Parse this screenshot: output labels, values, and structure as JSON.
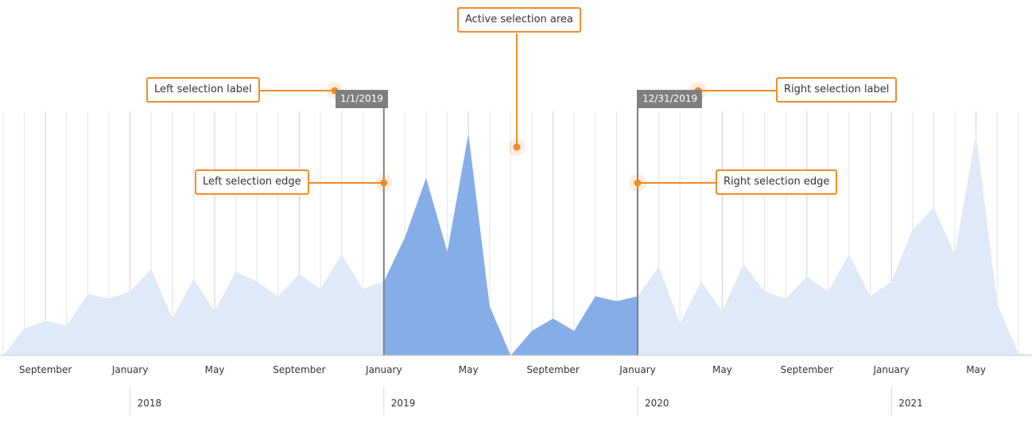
{
  "chart_data": {
    "type": "area",
    "x": [
      "2017-07",
      "2017-08",
      "2017-09",
      "2017-10",
      "2017-11",
      "2017-12",
      "2018-01",
      "2018-02",
      "2018-03",
      "2018-04",
      "2018-05",
      "2018-06",
      "2018-07",
      "2018-08",
      "2018-09",
      "2018-10",
      "2018-11",
      "2018-12",
      "2019-01",
      "2019-02",
      "2019-03",
      "2019-04",
      "2019-05",
      "2019-06",
      "2019-07",
      "2019-08",
      "2019-09",
      "2019-10",
      "2019-11",
      "2019-12",
      "2020-01",
      "2020-02",
      "2020-03",
      "2020-04",
      "2020-05",
      "2020-06",
      "2020-07",
      "2020-08",
      "2020-09",
      "2020-10",
      "2020-11",
      "2020-12",
      "2021-01",
      "2021-02",
      "2021-03",
      "2021-04",
      "2021-05",
      "2021-06",
      "2021-07",
      "2021-08"
    ],
    "values": [
      0,
      11,
      14,
      12,
      25,
      23,
      26,
      35,
      15,
      31,
      18,
      34,
      30,
      24,
      33,
      27,
      41,
      27,
      30,
      48,
      72,
      42,
      90,
      20,
      0,
      10,
      15,
      10,
      24,
      22,
      24,
      36,
      13,
      30,
      18,
      37,
      26,
      23,
      32,
      26,
      41,
      24,
      30,
      51,
      60,
      41,
      90,
      21,
      1,
      0
    ],
    "ylim": [
      0,
      100
    ],
    "selection": {
      "start": "2019-01",
      "end": "2019-12"
    },
    "grid": true,
    "x_ticks": [
      "September",
      "January",
      "May",
      "September",
      "January",
      "May",
      "September",
      "January",
      "May",
      "September",
      "January",
      "May"
    ],
    "years": [
      "2018",
      "2019",
      "2020",
      "2021"
    ],
    "colors": {
      "selected_fill": "#85ade8",
      "unselected_fill": "#dfe9f7",
      "edge_line": "#808080",
      "gridline": "#e3e3e3",
      "callout": "#f28c28"
    }
  },
  "selection_labels": {
    "left": "1/1/2019",
    "right": "12/31/2019"
  },
  "callouts": {
    "active_area": "Active selection area",
    "left_label": "Left selection label",
    "right_label": "Right selection label",
    "left_edge": "Left selection edge",
    "right_edge": "Right selection edge"
  }
}
